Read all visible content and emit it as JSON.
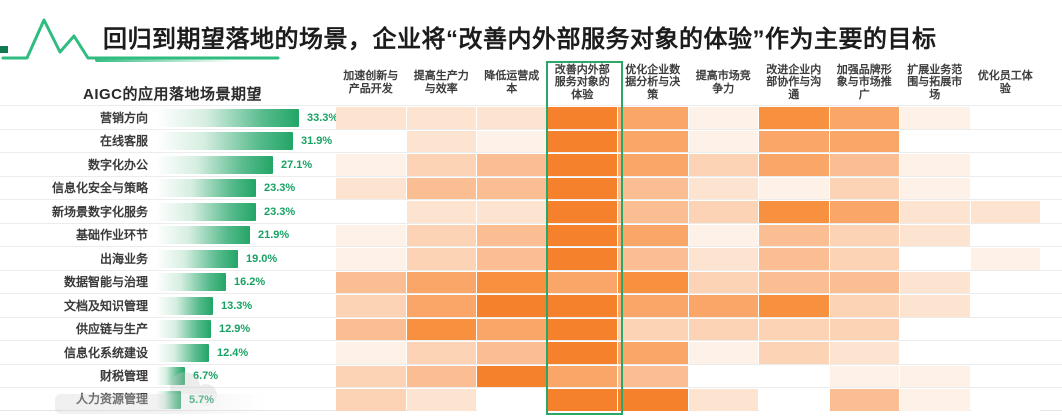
{
  "page": {
    "title": "回归到期望落地的场景，企业将“改善内外部服务对象的体验”作为主要的目标"
  },
  "chart_data": [
    {
      "type": "bar",
      "title": "AIGC的应用落地场景期望",
      "orientation": "horizontal",
      "categories": [
        "营销方向",
        "在线客服",
        "数字化办公",
        "信息化安全与策略",
        "新场景数字化服务",
        "基础作业环节",
        "出海业务",
        "数据智能与治理",
        "文档及知识管理",
        "供应链与生产",
        "信息化系统建设",
        "财税管理",
        "人力资源管理"
      ],
      "values": [
        33.3,
        31.9,
        27.1,
        23.3,
        23.3,
        21.9,
        19.0,
        16.2,
        13.3,
        12.9,
        12.4,
        6.7,
        5.7
      ],
      "value_labels": [
        "33.3%",
        "31.9%",
        "27.1%",
        "23.3%",
        "23.3%",
        "21.9%",
        "19.0%",
        "16.2%",
        "13.3%",
        "12.9%",
        "12.4%",
        "6.7%",
        "5.7%"
      ],
      "xlim": [
        0,
        35
      ],
      "bar_gradient": [
        "#FFFFFF",
        "#23A566"
      ],
      "value_label_color": "#17A263"
    },
    {
      "type": "heatmap",
      "rows": [
        "营销方向",
        "在线客服",
        "数字化办公",
        "信息化安全与策略",
        "新场景数字化服务",
        "基础作业环节",
        "出海业务",
        "数据智能与治理",
        "文档及知识管理",
        "供应链与生产",
        "信息化系统建设",
        "财税管理",
        "人力资源管理"
      ],
      "columns": [
        "加速创新与产品开发",
        "提高生产力与效率",
        "降低运营成本",
        "改善内外部服务对象的体验",
        "优化企业数据分析与决策",
        "提高市场竞争力",
        "改进企业内部协作与沟通",
        "加强品牌形象与市场推广",
        "扩展业务范围与拓展市场",
        "优化员工体验"
      ],
      "highlighted_column": "改善内外部服务对象的体验",
      "highlight_border_color": "#2BA768",
      "intensity_scale": "0 = white (lowest) to 7 = dark orange (highest), estimated from cell shading",
      "palette": [
        "#FFFFFF",
        "#FEF2E8",
        "#FDE4D0",
        "#FCD3B4",
        "#FBBD92",
        "#F9A668",
        "#F7913F",
        "#F5812C"
      ],
      "intensity_levels": [
        [
          2,
          2,
          2,
          7,
          5,
          1,
          6,
          5,
          1,
          0
        ],
        [
          0,
          2,
          1,
          7,
          5,
          1,
          5,
          5,
          0,
          0
        ],
        [
          1,
          3,
          4,
          7,
          5,
          3,
          5,
          4,
          1,
          0
        ],
        [
          2,
          4,
          4,
          7,
          4,
          2,
          1,
          3,
          1,
          0
        ],
        [
          0,
          2,
          2,
          7,
          4,
          3,
          6,
          5,
          2,
          2
        ],
        [
          1,
          3,
          4,
          7,
          5,
          1,
          4,
          3,
          2,
          0
        ],
        [
          1,
          3,
          4,
          7,
          4,
          2,
          4,
          3,
          0,
          1
        ],
        [
          4,
          5,
          6,
          5,
          6,
          3,
          4,
          4,
          2,
          0
        ],
        [
          3,
          5,
          7,
          7,
          5,
          5,
          6,
          3,
          2,
          0
        ],
        [
          4,
          6,
          5,
          7,
          3,
          3,
          3,
          3,
          0,
          0
        ],
        [
          1,
          3,
          4,
          7,
          5,
          1,
          3,
          2,
          0,
          0
        ],
        [
          3,
          4,
          7,
          5,
          4,
          0,
          0,
          1,
          1,
          0
        ],
        [
          3,
          2,
          0,
          7,
          7,
          2,
          0,
          4,
          1,
          0
        ]
      ]
    }
  ],
  "decor": {
    "accent_green": "#2EBD7F",
    "trend_icon": "green-zigzag-line"
  }
}
